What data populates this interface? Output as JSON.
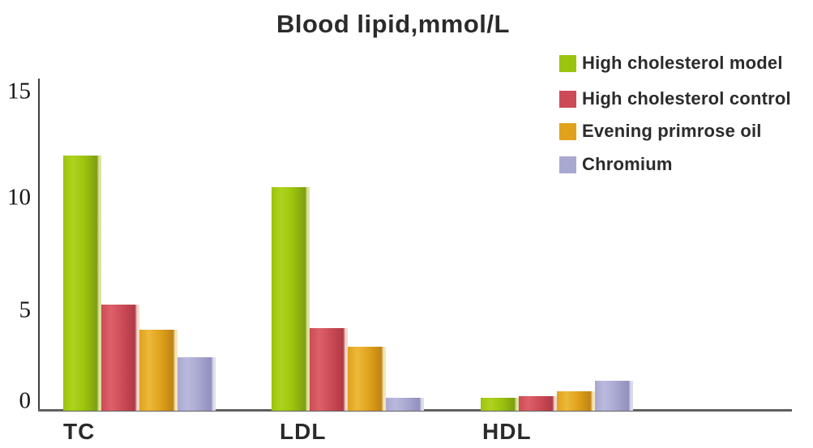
{
  "title": "Blood lipid,mmol/L",
  "chart_data": {
    "type": "bar",
    "title": "Blood lipid,mmol/L",
    "categories": [
      "TC",
      "LDL",
      "HDL"
    ],
    "series": [
      {
        "name": "High cholesterol model",
        "values": [
          12.0,
          10.5,
          0.6
        ],
        "color": "#9cc40e",
        "color_light": "#aed31f",
        "color_dark": "#7e9e10",
        "color_edge": "#dce3a0"
      },
      {
        "name": "High cholesterol control",
        "values": [
          5.0,
          3.9,
          0.7
        ],
        "color": "#cc4b57",
        "color_light": "#dd6169",
        "color_dark": "#b13a47",
        "color_edge": "#eedacd"
      },
      {
        "name": "Evening primrose oil",
        "values": [
          3.8,
          3.0,
          0.9
        ],
        "color": "#e0a21c",
        "color_light": "#edb83a",
        "color_dark": "#bf8414",
        "color_edge": "#f3e5bb"
      },
      {
        "name": "Chromium",
        "values": [
          2.5,
          0.6,
          1.4
        ],
        "color": "#a9a8d0",
        "color_light": "#bab9dd",
        "color_dark": "#9190bd",
        "color_edge": "#dcdcee"
      }
    ],
    "yticks": [
      15,
      10,
      5,
      0
    ],
    "ylim": [
      0,
      15
    ],
    "xlabel": "",
    "ylabel": "",
    "grid": false,
    "legend_position": "top-right"
  }
}
